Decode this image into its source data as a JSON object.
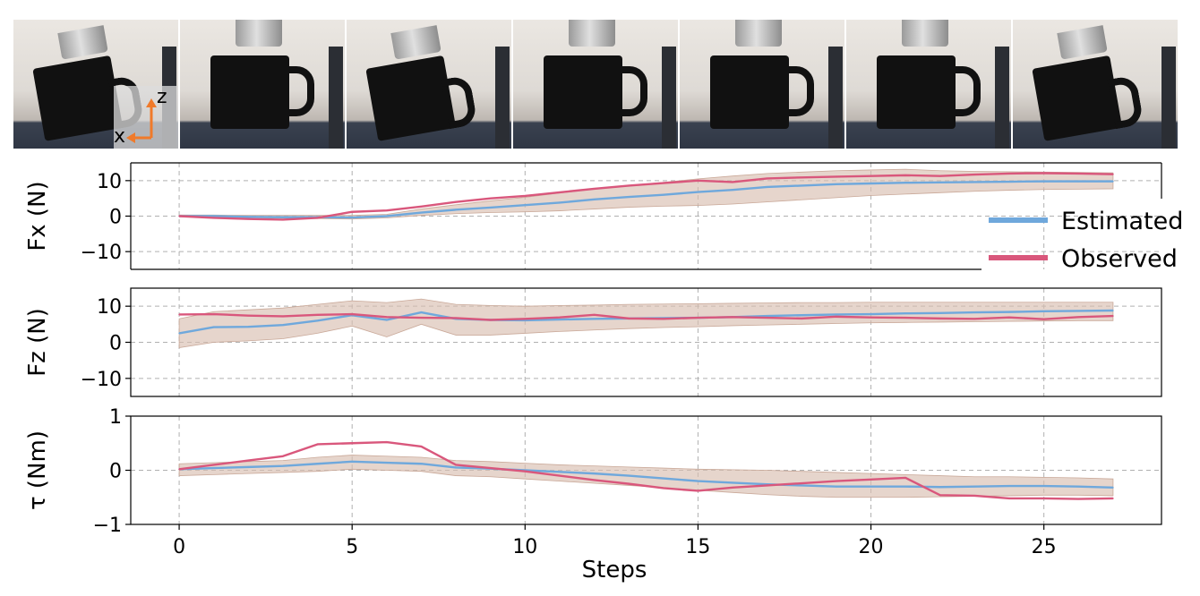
{
  "photos": {
    "frames": [
      {
        "id": "f1",
        "tilt": true,
        "axes": true
      },
      {
        "id": "f2",
        "tilt": false,
        "axes": false
      },
      {
        "id": "f3",
        "tilt": true,
        "axes": false
      },
      {
        "id": "f4",
        "tilt": false,
        "axes": false
      },
      {
        "id": "f5",
        "tilt": false,
        "axes": false
      },
      {
        "id": "f6",
        "tilt": false,
        "axes": false
      },
      {
        "id": "f7",
        "tilt": true,
        "axes": false
      }
    ],
    "axis_z": "z",
    "axis_x": "x"
  },
  "colors": {
    "estimated": "#6fa8dc",
    "observed": "#d9577c",
    "band": "#d9bfb0",
    "axis_arrow": "#f07a2a"
  },
  "chart_data": [
    {
      "type": "line",
      "ylabel": "Fx (N)",
      "xlim": [
        -1.4,
        28.4
      ],
      "ylim": [
        -15,
        15
      ],
      "yticks": [
        "10",
        "0",
        "−10"
      ],
      "grid": true,
      "legend": {
        "position": "right",
        "entries": [
          "Estimated",
          "Observed"
        ]
      },
      "x": [
        0,
        1,
        2,
        3,
        4,
        5,
        6,
        7,
        8,
        9,
        10,
        11,
        12,
        13,
        14,
        15,
        16,
        17,
        18,
        19,
        20,
        21,
        22,
        23,
        24,
        25,
        26,
        27
      ],
      "series": [
        {
          "name": "Estimated",
          "values": [
            0,
            0,
            -0.2,
            -0.3,
            -0.3,
            -0.4,
            0,
            1,
            1.8,
            2.4,
            3.1,
            3.8,
            4.7,
            5.4,
            6,
            6.8,
            7.4,
            8.2,
            8.6,
            9,
            9.2,
            9.4,
            9.5,
            9.6,
            9.7,
            9.8,
            9.8,
            9.8
          ]
        },
        {
          "name": "Observed",
          "values": [
            0,
            -0.5,
            -0.8,
            -1,
            -0.5,
            1.2,
            1.6,
            2.7,
            4,
            5,
            5.7,
            6.7,
            7.7,
            8.6,
            9.3,
            10,
            9.6,
            10.6,
            10.9,
            11.1,
            11.3,
            11.5,
            11.3,
            11.7,
            12,
            12.1,
            12,
            11.8
          ]
        }
      ],
      "band": {
        "lower": [
          0,
          -0.2,
          -0.4,
          -0.6,
          -0.7,
          -0.8,
          -0.5,
          0.2,
          0.7,
          1,
          1.2,
          1.5,
          2,
          2.5,
          2.8,
          3,
          3.4,
          4,
          4.6,
          5.2,
          5.8,
          6.2,
          6.6,
          7,
          7.3,
          7.5,
          7.6,
          7.7
        ],
        "upper": [
          0.3,
          0.3,
          0.2,
          0.2,
          0.2,
          0.2,
          0.5,
          2,
          3.2,
          4.3,
          5.3,
          6.5,
          7.6,
          8.6,
          9.5,
          10.5,
          11.3,
          12,
          12.4,
          12.8,
          13,
          13.2,
          12.8,
          12.6,
          12.5,
          12.4,
          12.3,
          12.2
        ]
      }
    },
    {
      "type": "line",
      "ylabel": "Fz (N)",
      "xlim": [
        -1.4,
        28.4
      ],
      "ylim": [
        -15,
        15
      ],
      "yticks": [
        "10",
        "0",
        "−10"
      ],
      "grid": true,
      "x": [
        0,
        1,
        2,
        3,
        4,
        5,
        6,
        7,
        8,
        9,
        10,
        11,
        12,
        13,
        14,
        15,
        16,
        17,
        18,
        19,
        20,
        21,
        22,
        23,
        24,
        25,
        26,
        27
      ],
      "series": [
        {
          "name": "Estimated",
          "values": [
            2.5,
            4.2,
            4.3,
            4.8,
            6,
            7.5,
            6.2,
            8.3,
            6.5,
            6.2,
            6.1,
            6.3,
            6.5,
            6.6,
            6.7,
            6.8,
            7,
            7.3,
            7.5,
            7.7,
            7.8,
            8,
            8.1,
            8.3,
            8.4,
            8.6,
            8.7,
            8.8
          ]
        },
        {
          "name": "Observed",
          "values": [
            7.7,
            7.8,
            7.4,
            7.2,
            7.6,
            7.8,
            7,
            6.8,
            6.7,
            6.2,
            6.5,
            6.9,
            7.6,
            6.6,
            6.5,
            6.8,
            7,
            6.8,
            6.6,
            7.1,
            6.9,
            6.8,
            6.6,
            6.5,
            6.9,
            6.4,
            7,
            7.3
          ]
        }
      ],
      "band": {
        "lower": [
          -1.5,
          0,
          0.4,
          1,
          2.5,
          4.5,
          1.5,
          5,
          2,
          2,
          2.5,
          3,
          3.4,
          3.8,
          4.1,
          4.3,
          4.6,
          4.8,
          5,
          5.2,
          5.4,
          5.5,
          5.6,
          5.7,
          5.8,
          5.9,
          6,
          6
        ],
        "upper": [
          6.5,
          8.5,
          9,
          9.5,
          10.5,
          11.5,
          11,
          12,
          10.5,
          10.2,
          10,
          10.2,
          10.3,
          10.5,
          10.6,
          10.7,
          10.8,
          10.9,
          11,
          11,
          11.1,
          11.1,
          11.1,
          11.1,
          11.1,
          11.1,
          11.1,
          11.1
        ]
      }
    },
    {
      "type": "line",
      "ylabel": "τ (Nm)",
      "xlabel": "Steps",
      "xlim": [
        -1.4,
        28.4
      ],
      "ylim": [
        -1,
        1
      ],
      "yticks": [
        "1",
        "0",
        "−1"
      ],
      "xticks": [
        "0",
        "5",
        "10",
        "15",
        "20",
        "25"
      ],
      "grid": true,
      "x": [
        0,
        1,
        2,
        3,
        4,
        5,
        6,
        7,
        8,
        9,
        10,
        11,
        12,
        13,
        14,
        15,
        16,
        17,
        18,
        19,
        20,
        21,
        22,
        23,
        24,
        25,
        26,
        27
      ],
      "series": [
        {
          "name": "Estimated",
          "values": [
            0.02,
            0.04,
            0.06,
            0.08,
            0.12,
            0.16,
            0.14,
            0.12,
            0.05,
            0.03,
            0,
            -0.03,
            -0.06,
            -0.1,
            -0.15,
            -0.2,
            -0.23,
            -0.26,
            -0.28,
            -0.3,
            -0.3,
            -0.3,
            -0.31,
            -0.3,
            -0.29,
            -0.29,
            -0.3,
            -0.32
          ]
        },
        {
          "name": "Observed",
          "values": [
            0.02,
            0.1,
            0.18,
            0.26,
            0.48,
            0.5,
            0.52,
            0.44,
            0.1,
            0.04,
            -0.02,
            -0.1,
            -0.18,
            -0.25,
            -0.33,
            -0.38,
            -0.32,
            -0.28,
            -0.24,
            -0.2,
            -0.17,
            -0.14,
            -0.46,
            -0.47,
            -0.52,
            -0.52,
            -0.53,
            -0.52
          ]
        }
      ],
      "band": {
        "lower": [
          -0.1,
          -0.08,
          -0.06,
          -0.04,
          -0.02,
          0.02,
          0,
          -0.02,
          -0.1,
          -0.12,
          -0.16,
          -0.2,
          -0.24,
          -0.28,
          -0.32,
          -0.37,
          -0.41,
          -0.45,
          -0.48,
          -0.5,
          -0.5,
          -0.5,
          -0.49,
          -0.48,
          -0.47,
          -0.46,
          -0.46,
          -0.47
        ],
        "upper": [
          0.12,
          0.14,
          0.16,
          0.18,
          0.24,
          0.28,
          0.26,
          0.24,
          0.18,
          0.16,
          0.13,
          0.1,
          0.08,
          0.06,
          0.04,
          0.02,
          0.01,
          0,
          -0.02,
          -0.04,
          -0.06,
          -0.08,
          -0.1,
          -0.12,
          -0.12,
          -0.13,
          -0.14,
          -0.16
        ]
      }
    }
  ]
}
